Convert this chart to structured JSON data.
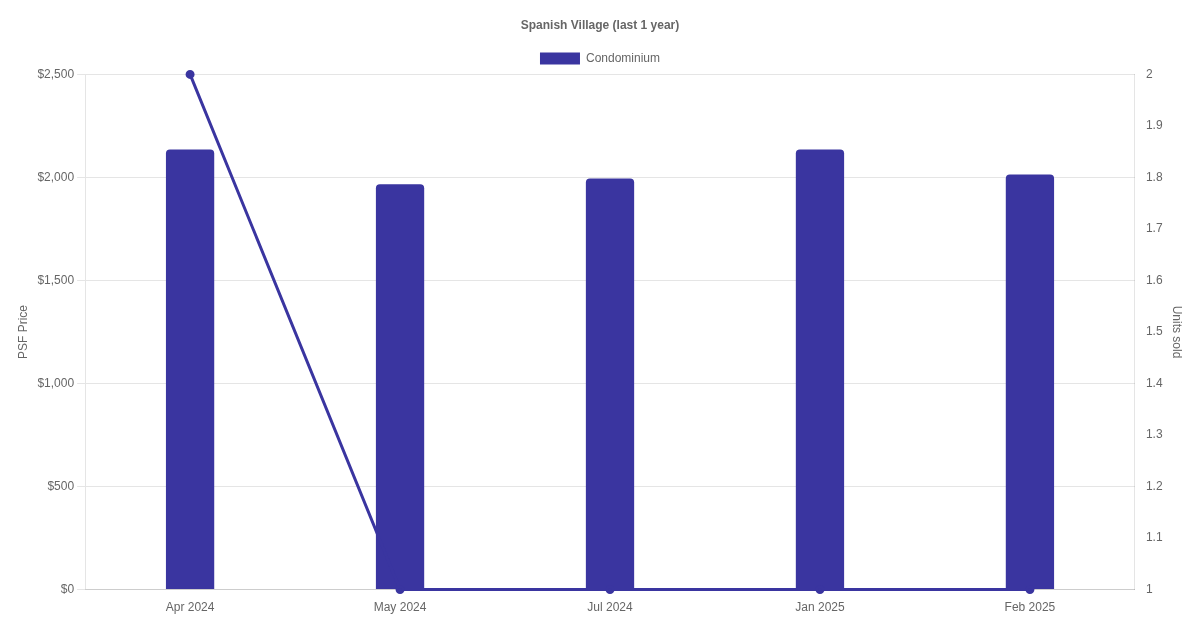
{
  "chart_data": {
    "type": "bar",
    "title": "Spanish Village (last 1 year)",
    "ylabel": "PSF Price",
    "y2label": "Units sold",
    "categories": [
      "Apr 2024",
      "May 2024",
      "Jul 2024",
      "Jan 2025",
      "Feb 2025"
    ],
    "series": [
      {
        "name": "Condominium",
        "color": "#3a35a0",
        "values": [
          2135,
          1967,
          1995,
          2135,
          2014
        ]
      },
      {
        "type": "line",
        "axis": "y2",
        "color": "#3a35a0",
        "values": [
          2,
          1,
          1,
          1,
          1
        ],
        "marker": "circle",
        "line_style": "solid"
      }
    ],
    "ylim": [
      0,
      2500
    ],
    "yticks": [
      {
        "value": 0,
        "label": "$0"
      },
      {
        "value": 500,
        "label": "$500"
      },
      {
        "value": 1000,
        "label": "$1,000"
      },
      {
        "value": 1500,
        "label": "$1,500"
      },
      {
        "value": 2000,
        "label": "$2,000"
      },
      {
        "value": 2500,
        "label": "$2,500"
      }
    ],
    "y2lim": [
      1,
      2
    ],
    "y2ticks": [
      1,
      1.1,
      1.2,
      1.3,
      1.4,
      1.5,
      1.6,
      1.7,
      1.8,
      1.9,
      2
    ],
    "grid": "y",
    "legend": "top"
  }
}
